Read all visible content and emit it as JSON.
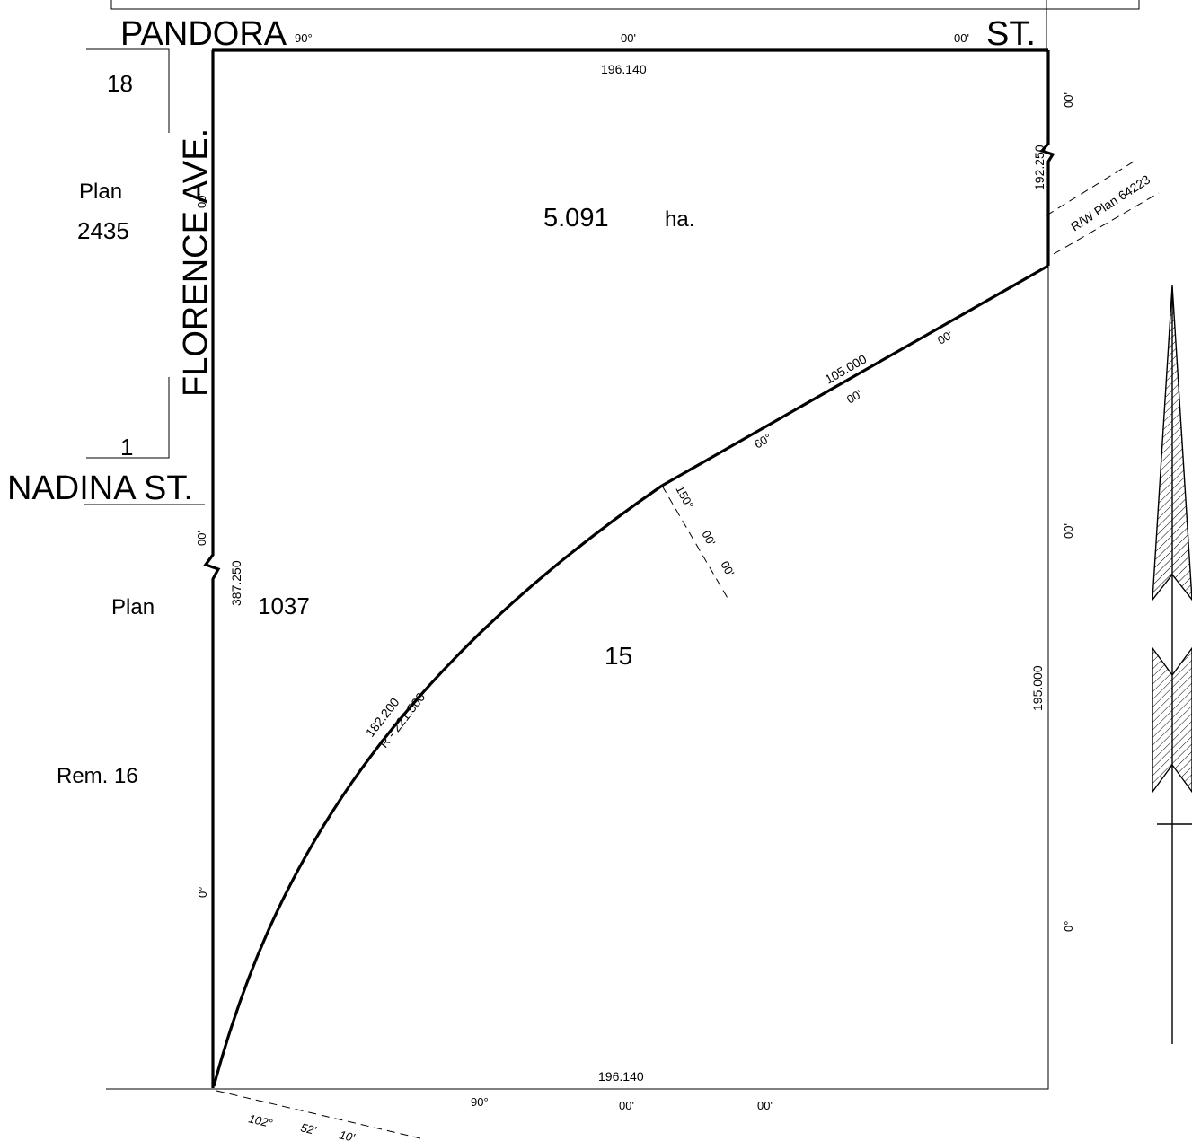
{
  "streets": {
    "pandora": "PANDORA",
    "st_right": "ST.",
    "florence": "FLORENCE  AVE.",
    "nadina": "NADINA  ST."
  },
  "lots": {
    "lot18": "18",
    "plan_label_top": "Plan",
    "plan_num_top": "2435",
    "lot1": "1",
    "plan_label_bottom": "Plan",
    "plan_num_bottom": "1037",
    "rem16": "Rem. 16",
    "lot15": "15"
  },
  "area": {
    "value": "5.091",
    "unit": "ha."
  },
  "row": {
    "label": "R/W Plan 64223"
  },
  "dimensions": {
    "top_length": "196.140",
    "bottom_length": "196.140",
    "left_length": "387.250",
    "right_upper_length": "192.250",
    "right_lower_length": "195.000",
    "chord_length": "105.000",
    "arc_length": "182.200",
    "radius": "R - 221.500"
  },
  "bearings": {
    "top_deg": "90°",
    "top_min": "00'",
    "top_sec": "00'",
    "bottom_deg": "90°",
    "bottom_min": "00'",
    "bottom_sec": "00'",
    "left_upper": "00'",
    "left_mid": "00'",
    "left_lower": "0°",
    "right_top": "00'",
    "right_mid": "00'",
    "right_lower": "0°",
    "chord_deg": "60°",
    "chord_min": "00'",
    "chord_sec": "00'",
    "radial_deg": "150°",
    "radial_min": "00'",
    "radial_sec": "00'",
    "sw_deg": "102°",
    "sw_min": "52'",
    "sw_sec": "10'"
  },
  "colors": {
    "ink": "#000000",
    "paper": "#ffffff"
  }
}
